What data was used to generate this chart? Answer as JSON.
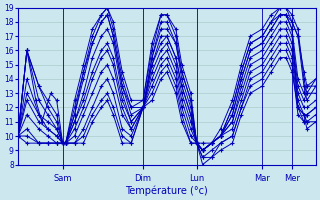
{
  "xlabel": "Température (°c)",
  "bg_color": "#cce8ee",
  "line_color": "#0000bb",
  "grid_color": "#aacccc",
  "ylim": [
    8,
    19
  ],
  "yticks": [
    8,
    9,
    10,
    11,
    12,
    13,
    14,
    15,
    16,
    17,
    18,
    19
  ],
  "day_labels": [
    "Sam",
    "Dim",
    "Lun",
    "Mar",
    "Mer"
  ],
  "day_positions": [
    0.15,
    0.42,
    0.6,
    0.82,
    0.92
  ],
  "lines": [
    [
      [
        0.0,
        10.0
      ],
      [
        0.03,
        16.0
      ],
      [
        0.07,
        13.5
      ],
      [
        0.1,
        12.5
      ],
      [
        0.13,
        11.5
      ],
      [
        0.15,
        9.5
      ],
      [
        0.16,
        9.5
      ],
      [
        0.19,
        12.0
      ],
      [
        0.22,
        14.5
      ],
      [
        0.25,
        17.0
      ],
      [
        0.28,
        18.5
      ],
      [
        0.3,
        19.0
      ],
      [
        0.32,
        17.5
      ],
      [
        0.35,
        14.0
      ],
      [
        0.38,
        12.0
      ],
      [
        0.42,
        12.5
      ],
      [
        0.45,
        16.0
      ],
      [
        0.48,
        18.5
      ],
      [
        0.5,
        18.5
      ],
      [
        0.53,
        17.0
      ],
      [
        0.55,
        14.5
      ],
      [
        0.58,
        12.5
      ],
      [
        0.6,
        9.5
      ],
      [
        0.62,
        9.0
      ],
      [
        0.65,
        9.5
      ],
      [
        0.68,
        10.0
      ],
      [
        0.72,
        12.0
      ],
      [
        0.75,
        14.5
      ],
      [
        0.78,
        16.5
      ],
      [
        0.82,
        17.0
      ],
      [
        0.85,
        18.0
      ],
      [
        0.88,
        19.0
      ],
      [
        0.9,
        19.0
      ],
      [
        0.92,
        18.0
      ],
      [
        0.94,
        17.0
      ],
      [
        0.96,
        14.5
      ],
      [
        0.97,
        13.5
      ],
      [
        1.0,
        14.0
      ]
    ],
    [
      [
        0.0,
        10.0
      ],
      [
        0.03,
        16.0
      ],
      [
        0.07,
        12.5
      ],
      [
        0.1,
        11.5
      ],
      [
        0.13,
        10.5
      ],
      [
        0.15,
        9.5
      ],
      [
        0.16,
        9.5
      ],
      [
        0.19,
        11.5
      ],
      [
        0.22,
        14.0
      ],
      [
        0.25,
        16.5
      ],
      [
        0.28,
        18.0
      ],
      [
        0.3,
        18.5
      ],
      [
        0.32,
        17.0
      ],
      [
        0.35,
        13.5
      ],
      [
        0.38,
        11.5
      ],
      [
        0.42,
        12.0
      ],
      [
        0.45,
        15.5
      ],
      [
        0.48,
        18.0
      ],
      [
        0.5,
        18.0
      ],
      [
        0.53,
        16.5
      ],
      [
        0.55,
        14.0
      ],
      [
        0.58,
        12.0
      ],
      [
        0.6,
        9.5
      ],
      [
        0.62,
        9.0
      ],
      [
        0.65,
        9.5
      ],
      [
        0.68,
        10.0
      ],
      [
        0.72,
        11.5
      ],
      [
        0.75,
        14.0
      ],
      [
        0.78,
        16.0
      ],
      [
        0.82,
        16.5
      ],
      [
        0.85,
        17.5
      ],
      [
        0.88,
        18.5
      ],
      [
        0.9,
        18.5
      ],
      [
        0.92,
        17.5
      ],
      [
        0.94,
        14.0
      ],
      [
        0.96,
        13.0
      ],
      [
        0.97,
        13.5
      ],
      [
        1.0,
        13.5
      ]
    ],
    [
      [
        0.0,
        10.0
      ],
      [
        0.03,
        14.0
      ],
      [
        0.07,
        11.5
      ],
      [
        0.1,
        11.0
      ],
      [
        0.13,
        10.5
      ],
      [
        0.15,
        9.5
      ],
      [
        0.16,
        9.5
      ],
      [
        0.19,
        11.0
      ],
      [
        0.22,
        13.0
      ],
      [
        0.25,
        15.5
      ],
      [
        0.28,
        17.0
      ],
      [
        0.3,
        17.5
      ],
      [
        0.32,
        16.5
      ],
      [
        0.35,
        13.0
      ],
      [
        0.38,
        11.0
      ],
      [
        0.42,
        12.0
      ],
      [
        0.45,
        15.0
      ],
      [
        0.48,
        17.0
      ],
      [
        0.5,
        17.0
      ],
      [
        0.53,
        15.5
      ],
      [
        0.55,
        13.5
      ],
      [
        0.58,
        11.5
      ],
      [
        0.6,
        9.5
      ],
      [
        0.62,
        9.0
      ],
      [
        0.65,
        9.5
      ],
      [
        0.68,
        10.0
      ],
      [
        0.72,
        11.0
      ],
      [
        0.75,
        13.5
      ],
      [
        0.78,
        15.5
      ],
      [
        0.82,
        16.0
      ],
      [
        0.85,
        17.0
      ],
      [
        0.88,
        18.0
      ],
      [
        0.9,
        18.0
      ],
      [
        0.92,
        17.0
      ],
      [
        0.94,
        13.5
      ],
      [
        0.96,
        12.5
      ],
      [
        0.97,
        13.0
      ],
      [
        1.0,
        13.0
      ]
    ],
    [
      [
        0.0,
        10.0
      ],
      [
        0.03,
        12.5
      ],
      [
        0.07,
        11.0
      ],
      [
        0.1,
        10.5
      ],
      [
        0.13,
        10.0
      ],
      [
        0.15,
        9.5
      ],
      [
        0.16,
        9.5
      ],
      [
        0.19,
        10.5
      ],
      [
        0.22,
        12.0
      ],
      [
        0.25,
        14.0
      ],
      [
        0.28,
        15.5
      ],
      [
        0.3,
        16.0
      ],
      [
        0.32,
        15.0
      ],
      [
        0.35,
        12.0
      ],
      [
        0.38,
        10.5
      ],
      [
        0.42,
        12.0
      ],
      [
        0.45,
        14.5
      ],
      [
        0.48,
        16.0
      ],
      [
        0.5,
        16.5
      ],
      [
        0.53,
        15.0
      ],
      [
        0.55,
        13.0
      ],
      [
        0.58,
        11.0
      ],
      [
        0.6,
        9.5
      ],
      [
        0.62,
        9.0
      ],
      [
        0.65,
        9.5
      ],
      [
        0.68,
        10.0
      ],
      [
        0.72,
        11.0
      ],
      [
        0.75,
        13.0
      ],
      [
        0.78,
        15.0
      ],
      [
        0.82,
        15.5
      ],
      [
        0.85,
        16.5
      ],
      [
        0.88,
        17.5
      ],
      [
        0.9,
        17.5
      ],
      [
        0.92,
        16.5
      ],
      [
        0.94,
        13.0
      ],
      [
        0.96,
        12.0
      ],
      [
        0.97,
        12.0
      ],
      [
        1.0,
        12.5
      ]
    ],
    [
      [
        0.0,
        10.0
      ],
      [
        0.03,
        11.5
      ],
      [
        0.07,
        10.5
      ],
      [
        0.1,
        10.0
      ],
      [
        0.13,
        9.5
      ],
      [
        0.15,
        9.5
      ],
      [
        0.16,
        9.5
      ],
      [
        0.19,
        10.0
      ],
      [
        0.22,
        11.5
      ],
      [
        0.25,
        13.0
      ],
      [
        0.28,
        14.5
      ],
      [
        0.3,
        15.0
      ],
      [
        0.32,
        14.0
      ],
      [
        0.35,
        11.5
      ],
      [
        0.38,
        10.5
      ],
      [
        0.42,
        12.0
      ],
      [
        0.45,
        14.0
      ],
      [
        0.48,
        15.5
      ],
      [
        0.5,
        16.0
      ],
      [
        0.53,
        14.5
      ],
      [
        0.55,
        12.5
      ],
      [
        0.58,
        10.5
      ],
      [
        0.6,
        9.5
      ],
      [
        0.62,
        9.0
      ],
      [
        0.65,
        9.5
      ],
      [
        0.68,
        10.0
      ],
      [
        0.72,
        10.5
      ],
      [
        0.75,
        12.5
      ],
      [
        0.78,
        14.5
      ],
      [
        0.82,
        15.0
      ],
      [
        0.85,
        16.0
      ],
      [
        0.88,
        17.0
      ],
      [
        0.9,
        17.0
      ],
      [
        0.92,
        16.0
      ],
      [
        0.94,
        12.5
      ],
      [
        0.96,
        11.5
      ],
      [
        0.97,
        11.5
      ],
      [
        1.0,
        12.0
      ]
    ],
    [
      [
        0.0,
        10.0
      ],
      [
        0.03,
        13.0
      ],
      [
        0.07,
        11.5
      ],
      [
        0.1,
        10.5
      ],
      [
        0.13,
        10.0
      ],
      [
        0.15,
        9.5
      ],
      [
        0.16,
        9.5
      ],
      [
        0.19,
        11.0
      ],
      [
        0.22,
        12.5
      ],
      [
        0.25,
        14.5
      ],
      [
        0.28,
        16.0
      ],
      [
        0.3,
        16.5
      ],
      [
        0.32,
        15.5
      ],
      [
        0.35,
        12.5
      ],
      [
        0.38,
        11.0
      ],
      [
        0.42,
        12.0
      ],
      [
        0.45,
        15.0
      ],
      [
        0.48,
        16.5
      ],
      [
        0.5,
        17.0
      ],
      [
        0.53,
        15.5
      ],
      [
        0.55,
        13.5
      ],
      [
        0.58,
        11.5
      ],
      [
        0.6,
        9.5
      ],
      [
        0.62,
        9.0
      ],
      [
        0.65,
        9.5
      ],
      [
        0.68,
        10.0
      ],
      [
        0.72,
        11.5
      ],
      [
        0.75,
        14.0
      ],
      [
        0.78,
        16.0
      ],
      [
        0.82,
        16.5
      ],
      [
        0.85,
        17.5
      ],
      [
        0.88,
        18.5
      ],
      [
        0.9,
        18.5
      ],
      [
        0.92,
        17.5
      ],
      [
        0.94,
        12.0
      ],
      [
        0.96,
        11.0
      ],
      [
        0.97,
        11.5
      ],
      [
        1.0,
        12.0
      ]
    ],
    [
      [
        0.0,
        10.0
      ],
      [
        0.03,
        10.5
      ],
      [
        0.07,
        9.5
      ],
      [
        0.1,
        9.5
      ],
      [
        0.13,
        9.5
      ],
      [
        0.15,
        9.5
      ],
      [
        0.16,
        9.5
      ],
      [
        0.19,
        9.5
      ],
      [
        0.22,
        10.5
      ],
      [
        0.25,
        12.0
      ],
      [
        0.28,
        13.5
      ],
      [
        0.3,
        14.0
      ],
      [
        0.32,
        13.0
      ],
      [
        0.35,
        10.5
      ],
      [
        0.38,
        10.0
      ],
      [
        0.42,
        12.0
      ],
      [
        0.45,
        13.5
      ],
      [
        0.48,
        15.0
      ],
      [
        0.5,
        15.5
      ],
      [
        0.53,
        14.0
      ],
      [
        0.55,
        12.0
      ],
      [
        0.58,
        10.0
      ],
      [
        0.6,
        9.5
      ],
      [
        0.62,
        8.5
      ],
      [
        0.65,
        9.0
      ],
      [
        0.68,
        9.5
      ],
      [
        0.72,
        10.0
      ],
      [
        0.75,
        12.0
      ],
      [
        0.78,
        14.0
      ],
      [
        0.82,
        14.5
      ],
      [
        0.85,
        15.5
      ],
      [
        0.88,
        16.5
      ],
      [
        0.9,
        16.5
      ],
      [
        0.92,
        15.5
      ],
      [
        0.94,
        12.0
      ],
      [
        0.96,
        11.5
      ],
      [
        0.97,
        11.0
      ],
      [
        1.0,
        11.5
      ]
    ],
    [
      [
        0.0,
        10.0
      ],
      [
        0.03,
        10.0
      ],
      [
        0.07,
        9.5
      ],
      [
        0.1,
        9.5
      ],
      [
        0.13,
        9.5
      ],
      [
        0.15,
        9.5
      ],
      [
        0.16,
        9.5
      ],
      [
        0.19,
        9.5
      ],
      [
        0.22,
        10.0
      ],
      [
        0.25,
        11.5
      ],
      [
        0.28,
        12.5
      ],
      [
        0.3,
        13.0
      ],
      [
        0.32,
        12.0
      ],
      [
        0.35,
        10.0
      ],
      [
        0.38,
        9.5
      ],
      [
        0.42,
        12.0
      ],
      [
        0.45,
        13.0
      ],
      [
        0.48,
        14.5
      ],
      [
        0.5,
        15.0
      ],
      [
        0.53,
        13.5
      ],
      [
        0.55,
        11.5
      ],
      [
        0.58,
        9.5
      ],
      [
        0.6,
        9.5
      ],
      [
        0.62,
        8.5
      ],
      [
        0.65,
        8.5
      ],
      [
        0.68,
        9.5
      ],
      [
        0.72,
        10.0
      ],
      [
        0.75,
        12.0
      ],
      [
        0.78,
        13.5
      ],
      [
        0.82,
        14.0
      ],
      [
        0.85,
        15.0
      ],
      [
        0.88,
        16.0
      ],
      [
        0.9,
        16.0
      ],
      [
        0.92,
        15.0
      ],
      [
        0.94,
        11.5
      ],
      [
        0.96,
        11.0
      ],
      [
        0.97,
        11.0
      ],
      [
        1.0,
        11.0
      ]
    ],
    [
      [
        0.0,
        10.0
      ],
      [
        0.03,
        16.0
      ],
      [
        0.07,
        13.5
      ],
      [
        0.1,
        12.0
      ],
      [
        0.13,
        11.0
      ],
      [
        0.15,
        9.5
      ],
      [
        0.16,
        9.5
      ],
      [
        0.19,
        12.5
      ],
      [
        0.22,
        15.0
      ],
      [
        0.25,
        17.5
      ],
      [
        0.28,
        18.5
      ],
      [
        0.3,
        19.0
      ],
      [
        0.32,
        18.0
      ],
      [
        0.35,
        14.5
      ],
      [
        0.38,
        12.5
      ],
      [
        0.42,
        12.5
      ],
      [
        0.45,
        16.5
      ],
      [
        0.48,
        18.5
      ],
      [
        0.5,
        18.5
      ],
      [
        0.53,
        17.5
      ],
      [
        0.55,
        15.0
      ],
      [
        0.58,
        13.0
      ],
      [
        0.6,
        9.5
      ],
      [
        0.62,
        9.0
      ],
      [
        0.65,
        9.5
      ],
      [
        0.68,
        10.5
      ],
      [
        0.72,
        12.5
      ],
      [
        0.75,
        15.0
      ],
      [
        0.78,
        17.0
      ],
      [
        0.82,
        17.5
      ],
      [
        0.85,
        18.5
      ],
      [
        0.88,
        19.0
      ],
      [
        0.9,
        19.0
      ],
      [
        0.92,
        18.5
      ],
      [
        0.94,
        17.5
      ],
      [
        0.96,
        14.0
      ],
      [
        0.97,
        13.0
      ],
      [
        1.0,
        14.0
      ]
    ],
    [
      [
        0.0,
        10.0
      ],
      [
        0.03,
        16.0
      ],
      [
        0.06,
        12.5
      ],
      [
        0.08,
        11.0
      ],
      [
        0.11,
        13.0
      ],
      [
        0.13,
        12.5
      ],
      [
        0.15,
        9.5
      ],
      [
        0.16,
        9.5
      ],
      [
        0.19,
        11.5
      ],
      [
        0.22,
        14.5
      ],
      [
        0.25,
        16.5
      ],
      [
        0.28,
        18.0
      ],
      [
        0.3,
        18.5
      ],
      [
        0.32,
        17.0
      ],
      [
        0.35,
        13.5
      ],
      [
        0.38,
        12.0
      ],
      [
        0.42,
        12.0
      ],
      [
        0.45,
        15.5
      ],
      [
        0.48,
        17.5
      ],
      [
        0.5,
        17.5
      ],
      [
        0.53,
        16.5
      ],
      [
        0.55,
        14.5
      ],
      [
        0.58,
        12.5
      ],
      [
        0.6,
        9.5
      ],
      [
        0.62,
        9.5
      ],
      [
        0.65,
        9.5
      ],
      [
        0.68,
        10.0
      ],
      [
        0.72,
        12.0
      ],
      [
        0.75,
        14.5
      ],
      [
        0.78,
        16.5
      ],
      [
        0.82,
        17.0
      ],
      [
        0.85,
        18.0
      ],
      [
        0.88,
        18.5
      ],
      [
        0.9,
        18.5
      ],
      [
        0.92,
        18.0
      ],
      [
        0.94,
        17.0
      ],
      [
        0.96,
        13.5
      ],
      [
        0.97,
        12.5
      ],
      [
        1.0,
        13.5
      ]
    ],
    [
      [
        0.0,
        10.0
      ],
      [
        0.03,
        9.5
      ],
      [
        0.07,
        9.5
      ],
      [
        0.1,
        9.5
      ],
      [
        0.13,
        9.5
      ],
      [
        0.15,
        9.5
      ],
      [
        0.16,
        9.5
      ],
      [
        0.19,
        9.5
      ],
      [
        0.22,
        9.5
      ],
      [
        0.25,
        11.0
      ],
      [
        0.28,
        12.0
      ],
      [
        0.3,
        12.5
      ],
      [
        0.32,
        11.5
      ],
      [
        0.35,
        9.5
      ],
      [
        0.38,
        9.5
      ],
      [
        0.42,
        12.0
      ],
      [
        0.45,
        12.5
      ],
      [
        0.48,
        14.0
      ],
      [
        0.5,
        14.5
      ],
      [
        0.53,
        13.0
      ],
      [
        0.55,
        11.0
      ],
      [
        0.58,
        9.5
      ],
      [
        0.6,
        9.5
      ],
      [
        0.62,
        8.0
      ],
      [
        0.65,
        8.5
      ],
      [
        0.68,
        9.0
      ],
      [
        0.72,
        9.5
      ],
      [
        0.75,
        11.5
      ],
      [
        0.78,
        13.0
      ],
      [
        0.82,
        13.5
      ],
      [
        0.85,
        14.5
      ],
      [
        0.88,
        15.5
      ],
      [
        0.9,
        15.5
      ],
      [
        0.92,
        14.5
      ],
      [
        0.94,
        12.0
      ],
      [
        0.96,
        11.5
      ],
      [
        0.97,
        10.5
      ],
      [
        1.0,
        11.0
      ]
    ]
  ]
}
